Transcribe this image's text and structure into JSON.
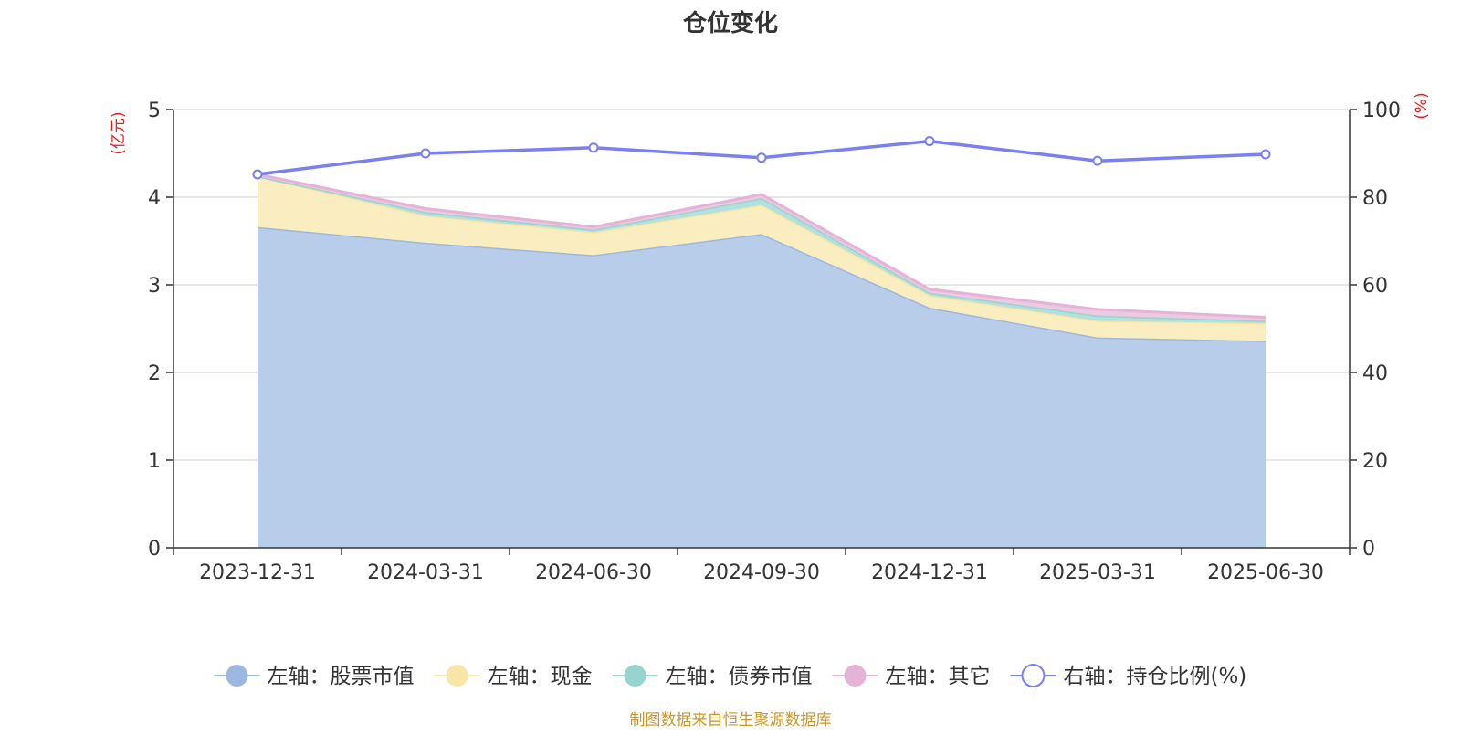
{
  "chart_data": {
    "type": "area",
    "title": "仓位变化",
    "left_axis_unit": "(亿元)",
    "right_axis_unit": "(%)",
    "categories": [
      "2023-12-31",
      "2024-03-31",
      "2024-06-30",
      "2024-09-30",
      "2024-12-31",
      "2025-03-31",
      "2025-06-30"
    ],
    "left_axis": {
      "min": 0,
      "max": 5,
      "ticks": [
        0,
        1,
        2,
        3,
        4,
        5
      ]
    },
    "right_axis": {
      "min": 0,
      "max": 100,
      "ticks": [
        0,
        20,
        40,
        60,
        80,
        100
      ]
    },
    "stacked": true,
    "series": [
      {
        "name": "左轴：股票市值",
        "axis": "left",
        "kind": "area",
        "color": "#9db8e0",
        "fill": "#b8cde9",
        "values": [
          3.66,
          3.48,
          3.34,
          3.58,
          2.74,
          2.4,
          2.36
        ]
      },
      {
        "name": "左轴：现金",
        "axis": "left",
        "kind": "area",
        "color": "#f8e6a6",
        "fill": "#faedbf",
        "values": [
          0.58,
          0.31,
          0.26,
          0.33,
          0.14,
          0.19,
          0.2
        ]
      },
      {
        "name": "左轴：债券市值",
        "axis": "left",
        "kind": "area",
        "color": "#97d4d0",
        "fill": "#b2e0dd",
        "values": [
          0.0,
          0.04,
          0.03,
          0.08,
          0.03,
          0.06,
          0.03
        ]
      },
      {
        "name": "左轴：其它",
        "axis": "left",
        "kind": "area",
        "color": "#e6b3d8",
        "fill": "#eccadf",
        "values": [
          0.02,
          0.04,
          0.03,
          0.04,
          0.04,
          0.07,
          0.04
        ]
      },
      {
        "name": "右轴：持仓比例(%)",
        "axis": "right",
        "kind": "line",
        "color": "#7b7ff0",
        "values": [
          85.2,
          90.0,
          91.3,
          89.0,
          92.8,
          88.3,
          89.8
        ]
      }
    ],
    "legend_position": "bottom",
    "grid": true
  },
  "source_note": "制图数据来自恒生聚源数据库",
  "colors": {
    "title": "#333333",
    "axis": "#333333",
    "grid": "#cccccc",
    "unit_label": "#e02020",
    "source": "#c8962a"
  }
}
